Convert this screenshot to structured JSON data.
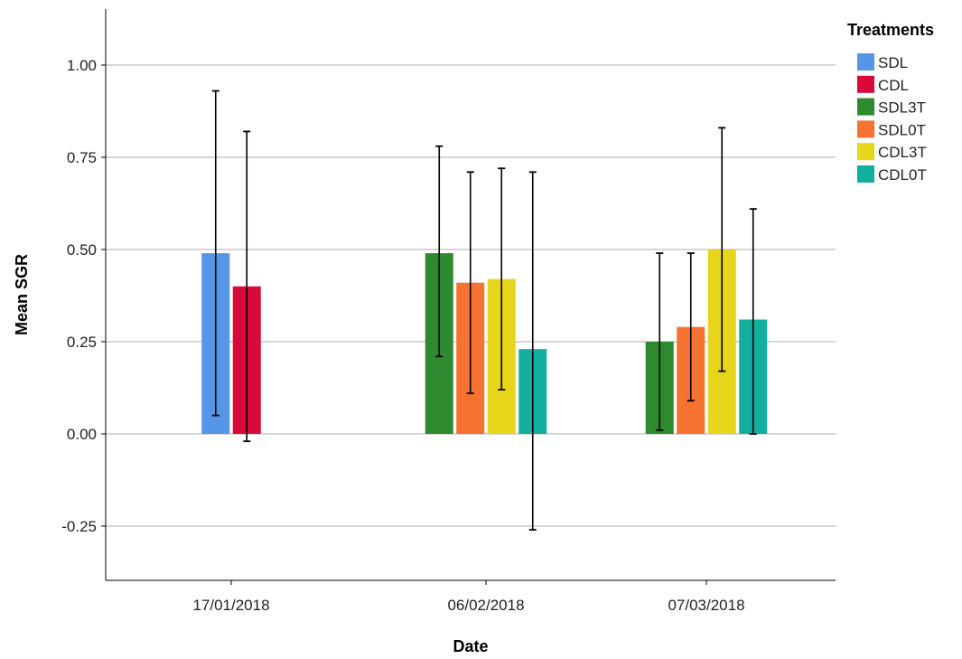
{
  "chart_data": {
    "type": "bar",
    "xlabel": "Date",
    "ylabel": "Mean SGR",
    "ylim": [
      -0.4,
      1.15
    ],
    "yticks": [
      "1.00",
      "0.75",
      "0.50",
      "0.25",
      "0.00",
      "-0.25"
    ],
    "ytick_values": [
      1.0,
      0.75,
      0.5,
      0.25,
      0.0,
      -0.25
    ],
    "grid": "horizontal",
    "legend_title": "Treatments",
    "legend_placement": "top-right outside",
    "categories": [
      "17/01/2018",
      "06/02/2018",
      "07/03/2018"
    ],
    "error_bars": true,
    "series": [
      {
        "name": "SDL",
        "color": "#5596e6",
        "values": [
          0.49,
          null,
          null
        ],
        "err_low": [
          0.05,
          null,
          null
        ],
        "err_high": [
          0.93,
          null,
          null
        ]
      },
      {
        "name": "CDL",
        "color": "#d80a3c",
        "values": [
          0.4,
          null,
          null
        ],
        "err_low": [
          -0.02,
          null,
          null
        ],
        "err_high": [
          0.82,
          null,
          null
        ]
      },
      {
        "name": "SDL3T",
        "color": "#2e8a2e",
        "values": [
          null,
          0.49,
          0.25
        ],
        "err_low": [
          null,
          0.21,
          0.01
        ],
        "err_high": [
          null,
          0.78,
          0.49
        ]
      },
      {
        "name": "SDL0T",
        "color": "#f57231",
        "values": [
          null,
          0.41,
          0.29
        ],
        "err_low": [
          null,
          0.11,
          0.09
        ],
        "err_high": [
          null,
          0.71,
          0.49
        ]
      },
      {
        "name": "CDL3T",
        "color": "#e6d51a",
        "values": [
          null,
          0.42,
          0.5
        ],
        "err_low": [
          null,
          0.12,
          0.17
        ],
        "err_high": [
          null,
          0.72,
          0.83
        ]
      },
      {
        "name": "CDL0T",
        "color": "#12ae9e",
        "values": [
          null,
          0.23,
          0.31
        ],
        "err_low": [
          null,
          -0.26,
          0.0
        ],
        "err_high": [
          null,
          0.71,
          0.61
        ]
      }
    ]
  }
}
